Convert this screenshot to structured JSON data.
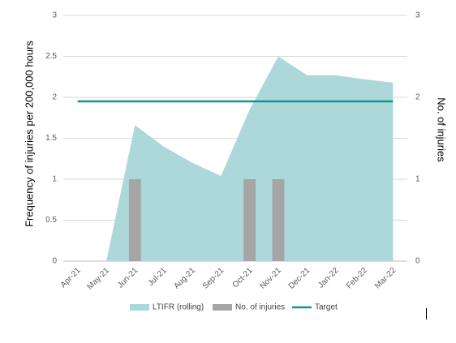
{
  "chart_data": {
    "type": "area",
    "categories": [
      "Apr-21",
      "May-21",
      "Jun-21",
      "Jul-21",
      "Aug-21",
      "Sep-21",
      "Oct-21",
      "Nov-21",
      "Dec-21",
      "Jan-22",
      "Feb-22",
      "Mar-22"
    ],
    "series": [
      {
        "name": "LTIFR (rolling)",
        "type": "area",
        "axis": "left",
        "color": "#acd8d9",
        "values": [
          0,
          0,
          1.66,
          1.4,
          1.2,
          1.04,
          1.85,
          2.5,
          2.27,
          2.27,
          2.22,
          2.18
        ]
      },
      {
        "name": "No. of injuries",
        "type": "bar",
        "axis": "right",
        "color": "#a5a5a5",
        "values": [
          0,
          0,
          1,
          0,
          0,
          0,
          1,
          1,
          0,
          0,
          0,
          0
        ]
      },
      {
        "name": "Target",
        "type": "line",
        "axis": "left",
        "color": "#0f9694",
        "values": [
          1.95,
          1.95,
          1.95,
          1.95,
          1.95,
          1.95,
          1.95,
          1.95,
          1.95,
          1.95,
          1.95,
          1.95
        ]
      }
    ],
    "ylabel": "Frequency of injuries per 200,000 hours",
    "y2label": "No. of injuries",
    "ylim": [
      0,
      3
    ],
    "y2lim": [
      0,
      3
    ],
    "yticks": [
      "0",
      "0.5",
      "1",
      "1.5",
      "2",
      "2.5",
      "3"
    ],
    "y2ticks": [
      "0",
      "1",
      "2",
      "3"
    ],
    "grid": true,
    "legend_position": "bottom"
  }
}
